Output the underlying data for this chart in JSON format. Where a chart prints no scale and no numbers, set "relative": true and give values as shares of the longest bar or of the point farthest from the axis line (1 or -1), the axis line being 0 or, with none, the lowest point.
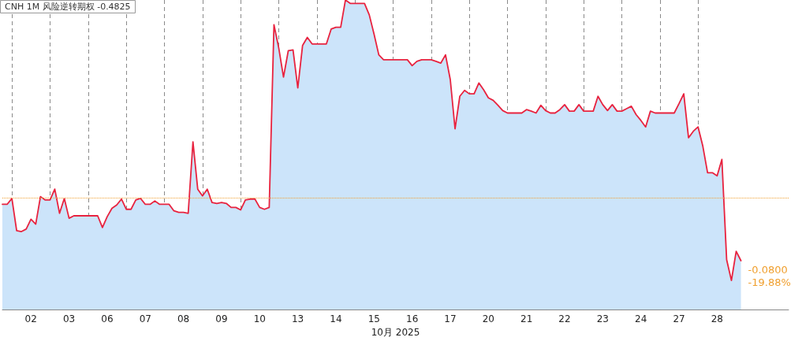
{
  "chart_data": {
    "type": "area",
    "title": "CNH 1M 风险逆转期权 -0.4825",
    "xlabel": "10月 2025",
    "relative": true,
    "grid": "x",
    "line_style": "solid",
    "categories": [
      null,
      null,
      null,
      null,
      null,
      null,
      "02",
      null,
      null,
      null,
      null,
      null,
      null,
      null,
      "03",
      null,
      null,
      null,
      null,
      null,
      null,
      null,
      "06",
      null,
      null,
      null,
      null,
      null,
      null,
      null,
      "07",
      null,
      null,
      null,
      null,
      null,
      null,
      null,
      "08",
      null,
      null,
      null,
      null,
      null,
      null,
      null,
      "09",
      null,
      null,
      null,
      null,
      null,
      null,
      null,
      "10",
      null,
      null,
      null,
      null,
      null,
      null,
      null,
      "13",
      null,
      null,
      null,
      null,
      null,
      null,
      null,
      "14",
      null,
      null,
      null,
      null,
      null,
      null,
      null,
      "15",
      null,
      null,
      null,
      null,
      null,
      null,
      null,
      "16",
      null,
      null,
      null,
      null,
      null,
      null,
      null,
      "17",
      null,
      null,
      null,
      null,
      null,
      null,
      null,
      "20",
      null,
      null,
      null,
      null,
      null,
      null,
      null,
      "21",
      null,
      null,
      null,
      null,
      null,
      null,
      null,
      "22",
      null,
      null,
      null,
      null,
      null,
      null,
      null,
      "23",
      null,
      null,
      null,
      null,
      null,
      null,
      null,
      "24",
      null,
      null,
      null,
      null,
      null,
      null,
      null,
      "27",
      null,
      null,
      null,
      null,
      null,
      null,
      null,
      "28",
      null,
      null,
      null,
      null,
      null,
      null,
      null,
      null,
      null,
      null,
      null,
      null,
      null,
      null,
      null
    ],
    "ref_lines": [
      {
        "axis": "y",
        "value": 0.359,
        "color": "#f0a030",
        "line_style": "dotted"
      }
    ],
    "annotations": [
      "-0.0800",
      "-19.88%"
    ],
    "series": [
      {
        "color": "#cce4fa",
        "values": [
          0.34,
          0.34,
          0.359,
          0.255,
          0.252,
          0.26,
          0.292,
          0.276,
          0.365,
          0.354,
          0.354,
          0.389,
          0.311,
          0.359,
          0.295,
          0.303,
          0.303,
          0.303,
          0.303,
          0.303,
          0.303,
          0.265,
          0.3,
          0.327,
          0.338,
          0.357,
          0.324,
          0.324,
          0.354,
          0.359,
          0.34,
          0.34,
          0.351,
          0.34,
          0.34,
          0.34,
          0.319,
          0.314,
          0.314,
          0.311,
          0.542,
          0.389,
          0.367,
          0.389,
          0.346,
          0.343,
          0.346,
          0.343,
          0.33,
          0.33,
          0.322,
          0.354,
          0.357,
          0.357,
          0.33,
          0.324,
          0.33,
          0.92,
          0.845,
          0.751,
          0.836,
          0.839,
          0.716,
          0.853,
          0.879,
          0.858,
          0.858,
          0.858,
          0.858,
          0.906,
          0.912,
          0.912,
          1,
          0.989,
          0.989,
          0.989,
          0.989,
          0.952,
          0.89,
          0.823,
          0.807,
          0.807,
          0.807,
          0.807,
          0.807,
          0.807,
          0.788,
          0.802,
          0.807,
          0.807,
          0.807,
          0.802,
          0.796,
          0.823,
          0.743,
          0.584,
          0.689,
          0.708,
          0.697,
          0.697,
          0.732,
          0.71,
          0.684,
          0.676,
          0.66,
          0.643,
          0.635,
          0.635,
          0.635,
          0.635,
          0.646,
          0.641,
          0.635,
          0.66,
          0.643,
          0.635,
          0.635,
          0.646,
          0.662,
          0.641,
          0.641,
          0.662,
          0.641,
          0.641,
          0.641,
          0.689,
          0.662,
          0.643,
          0.662,
          0.641,
          0.641,
          0.649,
          0.657,
          0.63,
          0.611,
          0.59,
          0.641,
          0.635,
          0.635,
          0.635,
          0.635,
          0.635,
          0.665,
          0.697,
          0.555,
          0.576,
          0.59,
          0.528,
          0.442,
          0.442,
          0.432,
          0.485,
          0.161,
          0.094,
          0.188,
          0.158,
          null,
          null,
          null,
          null,
          null,
          null,
          null,
          null,
          null,
          null
        ]
      },
      {
        "type": "line",
        "color": "#e8233f",
        "values": [
          0.34,
          0.34,
          0.359,
          0.255,
          0.252,
          0.26,
          0.292,
          0.276,
          0.365,
          0.354,
          0.354,
          0.389,
          0.311,
          0.359,
          0.295,
          0.303,
          0.303,
          0.303,
          0.303,
          0.303,
          0.303,
          0.265,
          0.3,
          0.327,
          0.338,
          0.357,
          0.324,
          0.324,
          0.354,
          0.359,
          0.34,
          0.34,
          0.351,
          0.34,
          0.34,
          0.34,
          0.319,
          0.314,
          0.314,
          0.311,
          0.542,
          0.389,
          0.367,
          0.389,
          0.346,
          0.343,
          0.346,
          0.343,
          0.33,
          0.33,
          0.322,
          0.354,
          0.357,
          0.357,
          0.33,
          0.324,
          0.33,
          0.92,
          0.845,
          0.751,
          0.836,
          0.839,
          0.716,
          0.853,
          0.879,
          0.858,
          0.858,
          0.858,
          0.858,
          0.906,
          0.912,
          0.912,
          1,
          0.989,
          0.989,
          0.989,
          0.989,
          0.952,
          0.89,
          0.823,
          0.807,
          0.807,
          0.807,
          0.807,
          0.807,
          0.807,
          0.788,
          0.802,
          0.807,
          0.807,
          0.807,
          0.802,
          0.796,
          0.823,
          0.743,
          0.584,
          0.689,
          0.708,
          0.697,
          0.697,
          0.732,
          0.71,
          0.684,
          0.676,
          0.66,
          0.643,
          0.635,
          0.635,
          0.635,
          0.635,
          0.646,
          0.641,
          0.635,
          0.66,
          0.643,
          0.635,
          0.635,
          0.646,
          0.662,
          0.641,
          0.641,
          0.662,
          0.641,
          0.641,
          0.641,
          0.689,
          0.662,
          0.643,
          0.662,
          0.641,
          0.641,
          0.649,
          0.657,
          0.63,
          0.611,
          0.59,
          0.641,
          0.635,
          0.635,
          0.635,
          0.635,
          0.635,
          0.665,
          0.697,
          0.555,
          0.576,
          0.59,
          0.528,
          0.442,
          0.442,
          0.432,
          0.485,
          0.161,
          0.094,
          0.188,
          0.158,
          null,
          null,
          null,
          null,
          null,
          null,
          null,
          null,
          null,
          null
        ]
      }
    ]
  }
}
